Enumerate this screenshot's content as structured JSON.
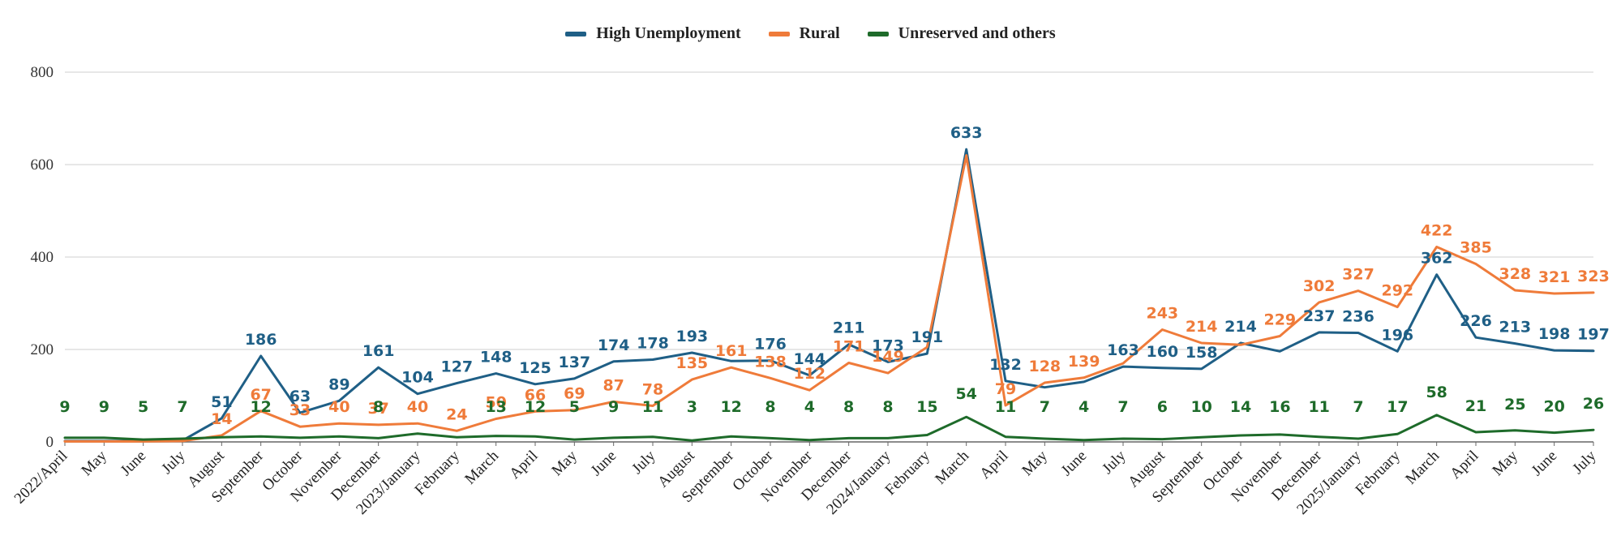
{
  "chart_data": {
    "type": "line",
    "title": "",
    "xlabel": "",
    "ylabel": "",
    "ylim": [
      0,
      800
    ],
    "yticks": [
      0,
      200,
      400,
      600,
      800
    ],
    "grid": true,
    "legend_position": "top-center",
    "categories": [
      "2022/April",
      "May",
      "June",
      "July",
      "August",
      "September",
      "October",
      "November",
      "December",
      "2023/January",
      "February",
      "March",
      "April",
      "May",
      "June",
      "July",
      "August",
      "September",
      "October",
      "November",
      "December",
      "2024/January",
      "February",
      "March",
      "April",
      "May",
      "June",
      "July",
      "August",
      "September",
      "October",
      "November",
      "December",
      "2025/January",
      "February",
      "March",
      "April",
      "May",
      "June",
      "July"
    ],
    "series": [
      {
        "name": "High Unemployment",
        "color": "#1f5f86",
        "values": [
          null,
          null,
          null,
          null,
          51,
          186,
          63,
          89,
          161,
          104,
          127,
          148,
          125,
          137,
          174,
          178,
          193,
          null,
          176,
          144,
          211,
          173,
          191,
          633,
          132,
          null,
          null,
          163,
          160,
          158,
          214,
          null,
          237,
          236,
          196,
          362,
          226,
          213,
          198,
          197
        ],
        "line_values": [
          2,
          2,
          2,
          3,
          51,
          186,
          63,
          89,
          161,
          104,
          127,
          148,
          125,
          137,
          174,
          178,
          193,
          175,
          176,
          144,
          211,
          173,
          191,
          633,
          132,
          118,
          130,
          163,
          160,
          158,
          214,
          196,
          237,
          236,
          196,
          362,
          226,
          213,
          198,
          197
        ]
      },
      {
        "name": "Rural",
        "color": "#ef7b3a",
        "values": [
          null,
          null,
          null,
          null,
          14,
          67,
          33,
          40,
          37,
          40,
          24,
          50,
          66,
          69,
          87,
          78,
          135,
          161,
          138,
          112,
          171,
          149,
          null,
          null,
          79,
          128,
          139,
          null,
          243,
          214,
          null,
          229,
          302,
          327,
          292,
          422,
          385,
          328,
          321,
          323
        ],
        "line_values": [
          1,
          1,
          1,
          2,
          14,
          67,
          33,
          40,
          37,
          40,
          24,
          50,
          66,
          69,
          87,
          78,
          135,
          161,
          138,
          112,
          171,
          149,
          205,
          620,
          79,
          128,
          139,
          170,
          243,
          214,
          210,
          229,
          302,
          327,
          292,
          422,
          385,
          328,
          321,
          323
        ]
      },
      {
        "name": "Unreserved and others",
        "color": "#1e6b2a",
        "values": [
          9,
          9,
          5,
          7,
          null,
          12,
          null,
          null,
          8,
          null,
          null,
          13,
          12,
          5,
          9,
          11,
          3,
          12,
          8,
          4,
          8,
          8,
          15,
          54,
          11,
          7,
          4,
          7,
          6,
          10,
          14,
          16,
          11,
          7,
          17,
          58,
          21,
          25,
          20,
          26
        ],
        "line_values": [
          9,
          9,
          5,
          7,
          10,
          12,
          9,
          12,
          8,
          18,
          10,
          13,
          12,
          5,
          9,
          11,
          3,
          12,
          8,
          4,
          8,
          8,
          15,
          54,
          11,
          7,
          4,
          7,
          6,
          10,
          14,
          16,
          11,
          7,
          17,
          58,
          21,
          25,
          20,
          26
        ]
      }
    ]
  }
}
